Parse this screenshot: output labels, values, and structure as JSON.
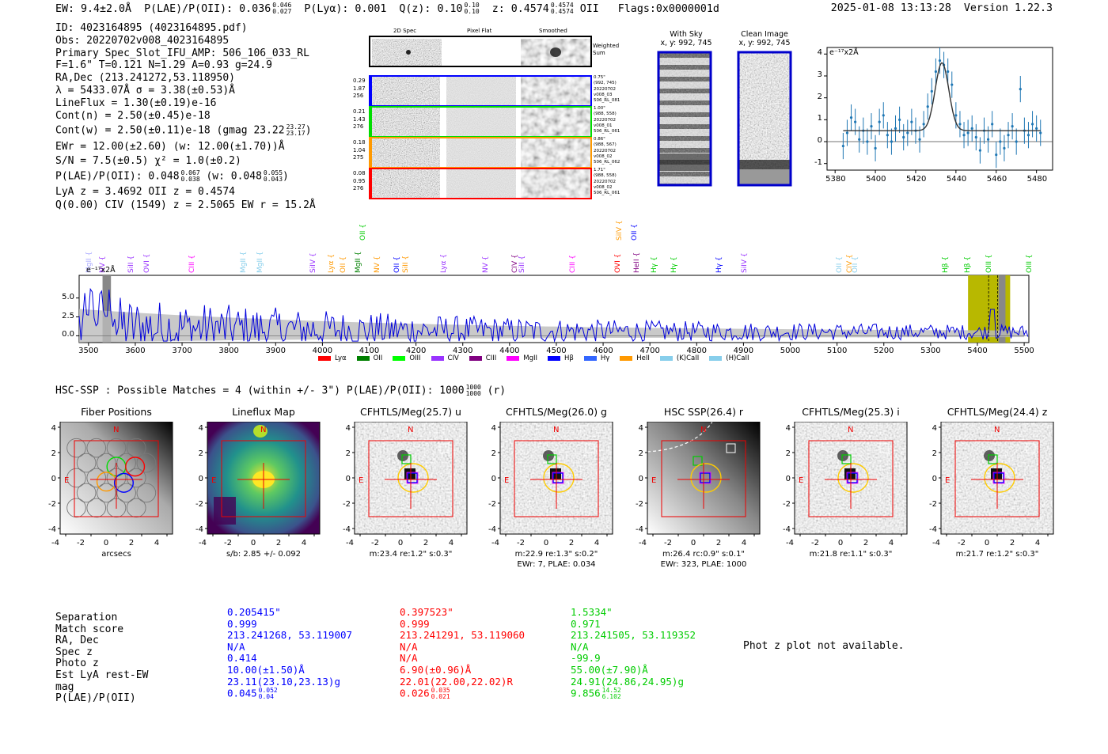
{
  "header": {
    "ew": "EW: 9.4±2.0Å",
    "plae_text": "P(LAE)/P(OII): 0.036",
    "plae_hi": "0.046",
    "plae_lo": "0.027",
    "plya": "P(Lyα): 0.001",
    "qz_text": "Q(z): 0.10",
    "qz_hi": "0.10",
    "qz_lo": "0.10",
    "z_text": "z: 0.4574",
    "z_hi": "0.4574",
    "z_lo": "0.4574",
    "z_line": "OII",
    "flags": "Flags:0x0000001d",
    "datetime": "2025-01-08 13:13:28",
    "version": "Version 1.22.3"
  },
  "info": {
    "id": "ID: 4023164895 (4023164895.pdf)",
    "obs": "Obs: 20220702v008_4023164895",
    "primary": "Primary Spec_Slot_IFU_AMP: 506_106_033_RL",
    "params": "F=1.6\"  T=0.121  N=1.29  A=0.93  g=24.9",
    "radec": "RA,Dec (213.241272,53.118950)",
    "lambda": "λ = 5433.07Å  σ = 3.38(±0.53)Å",
    "lineflux": "LineFlux = 1.30(±0.19)e-16",
    "contn": "Cont(n) = 2.50(±0.45)e-18",
    "contw": "Cont(w) = 2.50(±0.11)e-18 (gmag 23.22",
    "gmag_hi": "23.27",
    "gmag_lo": "23.17",
    "contw_close": ")",
    "ewr": "EWr = 12.00(±2.60) (w: 12.00(±1.70))Å",
    "sn": "S/N = 7.5(±0.5)  χ² = 1.0(±0.2)",
    "plae_a": "P(LAE)/P(OII): 0.048",
    "plae_a_hi": "0.067",
    "plae_a_lo": "0.038",
    "plae_w": "(w: 0.048",
    "plae_w_hi": "0.055",
    "plae_w_lo": "0.043",
    "plae_close": ")",
    "lya": "LyA z = 3.4692  OII z = 0.4574",
    "civ": "Q(0.00) CIV (1549) z = 2.5065  EW r = 15.2Å"
  },
  "stamps": {
    "col_2d": "2D Spec",
    "col_flat": "Pixel Flat",
    "col_smooth": "Smoothed",
    "weighted": [
      "Weighted",
      "Sum"
    ],
    "rows": [
      {
        "left": [
          "0.29",
          "1.87",
          "256"
        ],
        "right": [
          "0.75\"",
          "(992, 745)",
          "20220702",
          "v008_03",
          "506_RL_081"
        ],
        "color": "#0000ff"
      },
      {
        "left": [
          "0.21",
          "1.43",
          "276"
        ],
        "right": [
          "1.00\"",
          "(988, 558)",
          "20220702",
          "v008_01",
          "506_RL_061"
        ],
        "color": "#00dd00"
      },
      {
        "left": [
          "0.18",
          "1.04",
          "275"
        ],
        "right": [
          "0.86\"",
          "(988, 567)",
          "20220702",
          "v008_02",
          "506_RL_062"
        ],
        "color": "#ff9900"
      },
      {
        "left": [
          "0.08",
          "0.95",
          "276"
        ],
        "right": [
          "1.71\"",
          "(988, 558)",
          "20220702",
          "v008_02",
          "506_RL_061"
        ],
        "color": "#ff0000"
      }
    ]
  },
  "ccd": {
    "with_sky": "With Sky",
    "with_sky_xy": "x, y: 992, 745",
    "clean": "Clean Image",
    "clean_xy": "x, y: 992, 745"
  },
  "zoom_plot": {
    "ylabel": "e⁻¹⁷x2Å",
    "xticks": [
      "5380",
      "5400",
      "5420",
      "5440",
      "5460",
      "5480"
    ],
    "yticks": [
      "4",
      "3",
      "2",
      "1",
      "0",
      "-1"
    ],
    "chart_data": {
      "type": "scatter",
      "xlim": [
        5376,
        5488
      ],
      "ylim": [
        -1.3,
        4.3
      ],
      "x": [
        5384,
        5386,
        5388,
        5390,
        5392,
        5394,
        5396,
        5398,
        5400,
        5402,
        5404,
        5406,
        5408,
        5410,
        5412,
        5414,
        5416,
        5418,
        5420,
        5422,
        5424,
        5426,
        5428,
        5430,
        5432,
        5434,
        5436,
        5438,
        5440,
        5442,
        5444,
        5446,
        5448,
        5450,
        5452,
        5454,
        5456,
        5458,
        5460,
        5462,
        5464,
        5466,
        5468,
        5470,
        5472,
        5474,
        5476,
        5478,
        5480,
        5482
      ],
      "y": [
        -0.2,
        0.4,
        1.1,
        0.9,
        0.1,
        0.5,
        0.0,
        0.7,
        -0.3,
        0.9,
        1.2,
        0.3,
        0.0,
        0.6,
        1.0,
        0.2,
        0.4,
        0.9,
        0.5,
        0.1,
        0.8,
        1.6,
        2.3,
        3.2,
        3.7,
        3.5,
        3.2,
        2.6,
        1.2,
        0.8,
        0.3,
        0.4,
        0.6,
        0.2,
        -0.4,
        0.5,
        0.1,
        0.8,
        -0.6,
        0.0,
        -0.3,
        0.3,
        0.7,
        0.0,
        2.4,
        0.5,
        0.3,
        0.8,
        0.6,
        0.4
      ],
      "err": 0.6,
      "model": {
        "continuum": 0.5,
        "center": 5433.07,
        "sigma": 3.38,
        "amplitude": 3.1
      },
      "title": "",
      "xlabel": "",
      "ylabel": "e⁻¹⁷x2Å"
    }
  },
  "full_spec": {
    "ylabel": "e⁻¹⁷x2Å",
    "xticks": [
      "3500",
      "3600",
      "3700",
      "3800",
      "3900",
      "4000",
      "4100",
      "4200",
      "4300",
      "4400",
      "4500",
      "4600",
      "4700",
      "4800",
      "4900",
      "5000",
      "5100",
      "5200",
      "5300",
      "5400",
      "5500"
    ],
    "yticks": [
      "5.0",
      "2.5",
      "0.0"
    ],
    "legend": [
      {
        "label": "Lyα",
        "color": "#ff0000"
      },
      {
        "label": "OII",
        "color": "#008000"
      },
      {
        "label": "OIII",
        "color": "#00ff00"
      },
      {
        "label": "CIV",
        "color": "#9933ff"
      },
      {
        "label": "CIII",
        "color": "#800080"
      },
      {
        "label": "MgII",
        "color": "#ff00ff"
      },
      {
        "label": "Hβ",
        "color": "#0000ff"
      },
      {
        "label": "Hγ",
        "color": "#3366ff"
      },
      {
        "label": "HeII",
        "color": "#ff9900"
      },
      {
        "label": "(K)CaII",
        "color": "#87ceeb"
      },
      {
        "label": "(H)CaII",
        "color": "#87ceeb"
      }
    ],
    "lines": [
      {
        "label": "MgII",
        "wl": 3502,
        "color": "#aaaaff",
        "row": 1
      },
      {
        "label": "NV",
        "wl": 3530,
        "color": "#9933ff",
        "row": 1
      },
      {
        "label": "SiII",
        "wl": 3592,
        "color": "#9933ff",
        "row": 1
      },
      {
        "label": "OVI",
        "wl": 3625,
        "color": "#9933ff",
        "row": 1
      },
      {
        "label": "CIII",
        "wl": 3722,
        "color": "#ff00ff",
        "row": 1
      },
      {
        "label": "MgII",
        "wl": 3832,
        "color": "#87ceeb",
        "row": 1
      },
      {
        "label": "MgII",
        "wl": 3868,
        "color": "#87ceeb",
        "row": 1
      },
      {
        "label": "SiIV",
        "wl": 3980,
        "color": "#9933ff",
        "row": 1
      },
      {
        "label": "Lyα",
        "wl": 4020,
        "color": "#ff9900",
        "row": 1
      },
      {
        "label": "OII",
        "wl": 4045,
        "color": "#ff9900",
        "row": 1
      },
      {
        "label": "MgII",
        "wl": 4078,
        "color": "#008000",
        "row": 1
      },
      {
        "label": "OII",
        "wl": 4088,
        "color": "#00cc00",
        "row": 0
      },
      {
        "label": "NV",
        "wl": 4118,
        "color": "#ff9900",
        "row": 1
      },
      {
        "label": "OII",
        "wl": 4160,
        "color": "#0000ff",
        "row": 1
      },
      {
        "label": "SiII",
        "wl": 4178,
        "color": "#ff9900",
        "row": 1
      },
      {
        "label": "Lyα",
        "wl": 4260,
        "color": "#9933ff",
        "row": 1
      },
      {
        "label": "NV",
        "wl": 4350,
        "color": "#9933ff",
        "row": 1
      },
      {
        "label": "CIV",
        "wl": 4412,
        "color": "#800080",
        "row": 1
      },
      {
        "label": "SiII",
        "wl": 4428,
        "color": "#9933ff",
        "row": 1
      },
      {
        "label": "CIII",
        "wl": 4535,
        "color": "#ff00ff",
        "row": 1
      },
      {
        "label": "OVI",
        "wl": 4632,
        "color": "#ff0000",
        "row": 1
      },
      {
        "label": "SiIV",
        "wl": 4636,
        "color": "#ff9900",
        "row": 0
      },
      {
        "label": "OII",
        "wl": 4668,
        "color": "#0000ff",
        "row": 0
      },
      {
        "label": "HeII",
        "wl": 4672,
        "color": "#800080",
        "row": 1
      },
      {
        "label": "Hγ",
        "wl": 4710,
        "color": "#00cc00",
        "row": 1
      },
      {
        "label": "Hγ",
        "wl": 4752,
        "color": "#00cc00",
        "row": 1
      },
      {
        "label": "Hγ",
        "wl": 4848,
        "color": "#0000ff",
        "row": 1
      },
      {
        "label": "SiIV",
        "wl": 4902,
        "color": "#9933ff",
        "row": 1
      },
      {
        "label": "OII",
        "wl": 5105,
        "color": "#87ceeb",
        "row": 1
      },
      {
        "label": "CIV",
        "wl": 5128,
        "color": "#ff9900",
        "row": 1
      },
      {
        "label": "OII",
        "wl": 5140,
        "color": "#87ceeb",
        "row": 1
      },
      {
        "label": "Hβ",
        "wl": 5332,
        "color": "#00cc00",
        "row": 1
      },
      {
        "label": "Hβ",
        "wl": 5380,
        "color": "#00cc00",
        "row": 1
      },
      {
        "label": "OIII",
        "wl": 5425,
        "color": "#00cc00",
        "row": 1
      },
      {
        "label": "OIII",
        "wl": 5512,
        "color": "#00cc00",
        "row": 1
      }
    ],
    "chart_data": {
      "type": "line",
      "xlim": [
        3480,
        5510
      ],
      "ylim": [
        -0.9,
        8.0
      ],
      "description_series": "flux",
      "x_start": 3480,
      "x_step": 4,
      "noise_trend": "decreasing from ~3 at 3500 to ~0.5 at 5500",
      "highlight_regions": [
        [
          5380,
          5470
        ]
      ],
      "gray_regions": [
        [
          3530,
          3548
        ],
        [
          5445,
          5460
        ]
      ],
      "title": "",
      "xlabel": "",
      "ylabel": "e⁻¹⁷x2Å"
    }
  },
  "hsc": {
    "text": "HSC-SSP : Possible Matches = 4 (within +/- 3\")  P(LAE)/P(OII): 1000",
    "hi": "1000",
    "lo": "1000",
    "band": "(r)"
  },
  "cutouts": [
    {
      "title": "Fiber Positions",
      "cap": [
        "arcsecs"
      ],
      "type": "fiber"
    },
    {
      "title": "Lineflux Map",
      "cap": [
        "s/b: 2.85 +/- 0.092"
      ],
      "type": "flux"
    },
    {
      "title": "CFHTLS/Meg(25.7) u",
      "cap": [
        "m:23.4  re:1.2\"  s:0.3\""
      ],
      "type": "noise"
    },
    {
      "title": "CFHTLS/Meg(26.0) g",
      "cap": [
        "m:22.9  re:1.3\"  s:0.2\"",
        "EWr: 7, PLAE: 0.034"
      ],
      "type": "noise"
    },
    {
      "title": "HSC SSP(26.4) r",
      "cap": [
        "m:26.4 rc:0.9\"  s:0.1\"",
        "EWr: 323, PLAE: 1000"
      ],
      "type": "smooth"
    },
    {
      "title": "CFHTLS/Meg(25.3) i",
      "cap": [
        "m:21.8  re:1.1\"  s:0.3\""
      ],
      "type": "noise"
    },
    {
      "title": "CFHTLS/Meg(24.4) z",
      "cap": [
        "m:21.7  re:1.2\"  s:0.3\""
      ],
      "type": "noise"
    }
  ],
  "cutout_axes": {
    "ticks": [
      "4",
      "2",
      "0",
      "-2",
      "-4"
    ],
    "xticks": [
      "-4",
      "-2",
      "0",
      "2",
      "4"
    ],
    "north": "N",
    "east": "E"
  },
  "matches": {
    "labels": [
      "Separation",
      "Match score",
      "RA, Dec",
      "Spec z",
      "Photo z",
      "Est LyA rest-EW",
      "mag",
      "P(LAE)/P(OII)"
    ],
    "columns": [
      {
        "color": "#0000ff",
        "values": [
          "0.205415\"",
          "0.999",
          "213.241268, 53.119007",
          "N/A",
          "0.414",
          "10.00(±1.50)Å",
          "23.11(23.10,23.13)g"
        ],
        "plae": "0.045",
        "plae_hi": "0.052",
        "plae_lo": "0.04"
      },
      {
        "color": "#ff0000",
        "values": [
          "0.397523\"",
          "0.999",
          "213.241291, 53.119060",
          "N/A",
          "N/A",
          "6.90(±0.96)Å",
          "22.01(22.00,22.02)R"
        ],
        "plae": "0.026",
        "plae_hi": "0.035",
        "plae_lo": "0.021"
      },
      {
        "color": "#00cc00",
        "values": [
          "1.5334\"",
          "0.971",
          "213.241505, 53.119352",
          "N/A",
          "-99.9",
          "55.00(±7.90)Å",
          "24.91(24.86,24.95)g"
        ],
        "plae": "9.856",
        "plae_hi": "14.52",
        "plae_lo": "6.102"
      }
    ],
    "photz_note": "Phot z plot not available."
  }
}
